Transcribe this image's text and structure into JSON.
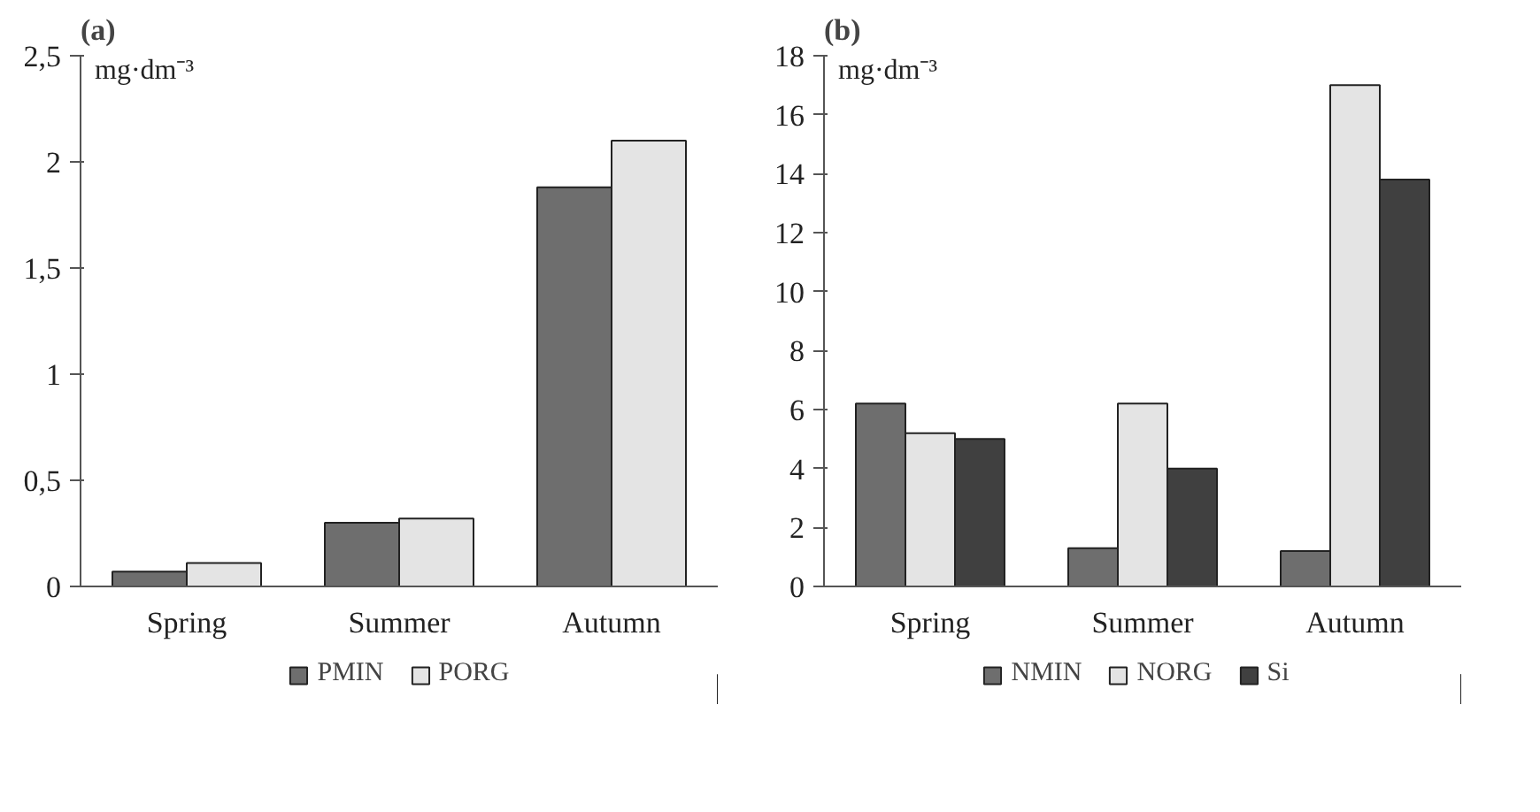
{
  "chart_data": [
    {
      "type": "bar",
      "title": "(a)",
      "ylabel": "mg·dm⁻³",
      "categories": [
        "Spring",
        "Summer",
        "Autumn"
      ],
      "series": [
        {
          "name": "PMIN",
          "color": "#6e6e6e",
          "values": [
            0.07,
            0.3,
            1.88
          ]
        },
        {
          "name": "PORG",
          "color": "#e4e4e4",
          "values": [
            0.11,
            0.32,
            2.1
          ]
        }
      ],
      "ylim": [
        0,
        2.5
      ],
      "yticks": [
        0,
        {
          "value": 0.5,
          "label": "0,5"
        },
        1,
        {
          "value": 1.5,
          "label": "1,5"
        },
        2,
        {
          "value": 2.5,
          "label": "2,5"
        }
      ],
      "grid": false,
      "legend": "bottom"
    },
    {
      "type": "bar",
      "title": "(b)",
      "ylabel": "mg·dm⁻³",
      "categories": [
        "Spring",
        "Summer",
        "Autumn"
      ],
      "series": [
        {
          "name": "NMIN",
          "color": "#6e6e6e",
          "values": [
            6.2,
            1.3,
            1.2
          ]
        },
        {
          "name": "NORG",
          "color": "#e4e4e4",
          "values": [
            5.2,
            6.2,
            17.0
          ]
        },
        {
          "name": "Si",
          "color": "#404040",
          "values": [
            5.0,
            4.0,
            13.8
          ]
        }
      ],
      "ylim": [
        0,
        18
      ],
      "yticks": [
        0,
        2,
        4,
        6,
        8,
        10,
        12,
        14,
        16,
        18
      ],
      "grid": false,
      "legend": "bottom"
    }
  ]
}
